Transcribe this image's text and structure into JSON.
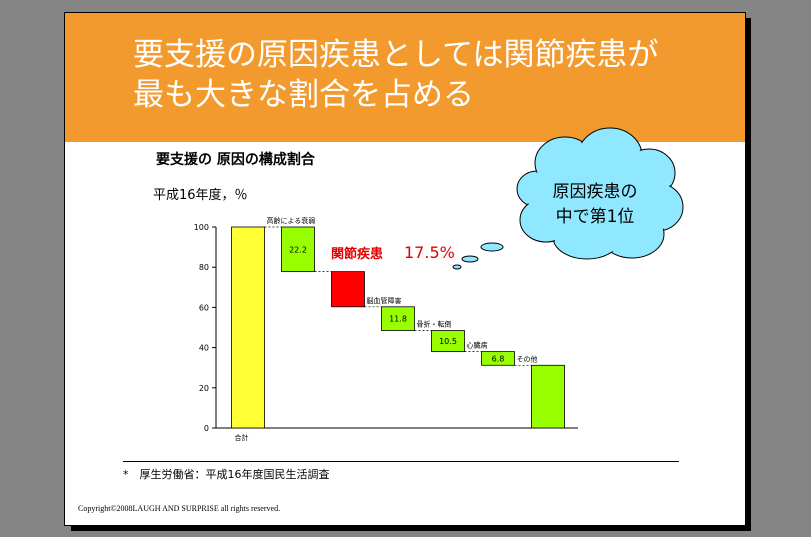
{
  "header": {
    "title": "要支援の原因疾患としては関節疾患が\n最も大きな割合を占める"
  },
  "chart_data": {
    "type": "bar",
    "title": "要支援の 原因の構成割合",
    "subtitle": "平成16年度，％",
    "ylim": [
      0,
      100
    ],
    "yticks": [
      0,
      20,
      40,
      60,
      80,
      100
    ],
    "bars": [
      {
        "label": "合計",
        "value": 100,
        "start": 0,
        "end": 100,
        "color": "#ffff33",
        "value_label": ""
      },
      {
        "label": "高齢による衰弱",
        "value": 22.2,
        "start": 77.8,
        "end": 100,
        "color": "#99ff00",
        "value_label": "22.2"
      },
      {
        "label": "関節疾患",
        "value": 17.5,
        "start": 60.3,
        "end": 77.8,
        "color": "#ff0000",
        "value_label": ""
      },
      {
        "label": "脳血管障害",
        "value": 11.8,
        "start": 48.5,
        "end": 60.3,
        "color": "#99ff00",
        "value_label": "11.8"
      },
      {
        "label": "骨折・転倒",
        "value": 10.5,
        "start": 38,
        "end": 48.5,
        "color": "#99ff00",
        "value_label": "10.5"
      },
      {
        "label": "心臓病",
        "value": 6.8,
        "start": 31.2,
        "end": 38,
        "color": "#99ff00",
        "value_label": "6.8"
      },
      {
        "label": "その他",
        "value": 31.2,
        "start": 0,
        "end": 31.2,
        "color": "#99ff00",
        "value_label": ""
      }
    ],
    "highlight": {
      "label": "関節疾患",
      "value": "17.5%"
    },
    "callout": "原因疾患の\n中で第1位"
  },
  "footer": {
    "source": "*　厚生労働省：平成16年度国民生活調査",
    "copyright": "Copyright©2008LAUGH AND SURPRISE all rights reserved."
  }
}
